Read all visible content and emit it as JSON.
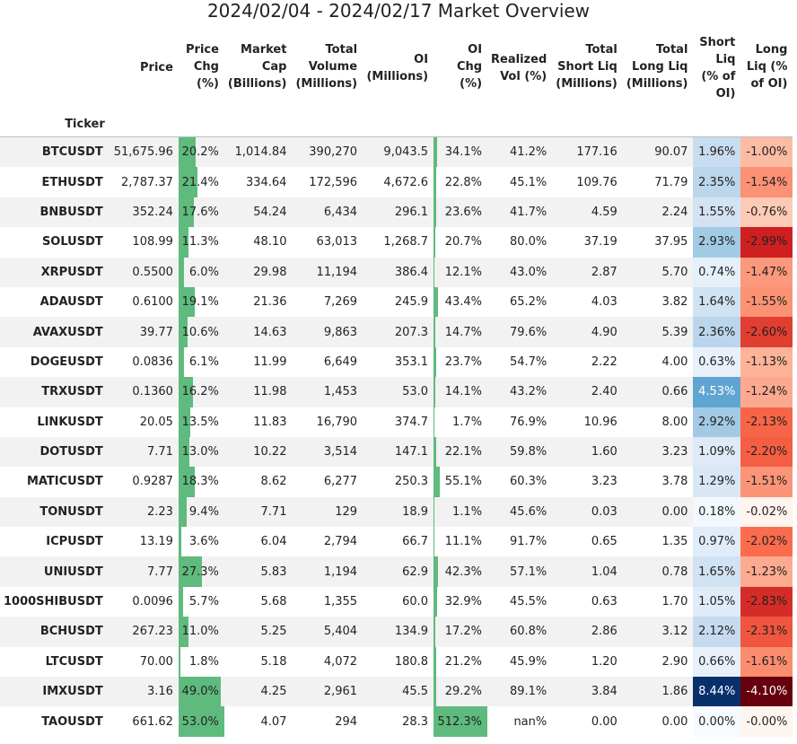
{
  "title": "2024/02/04 - 2024/02/17 Market Overview",
  "headers": {
    "index": "Ticker",
    "columns": [
      [
        "Price"
      ],
      [
        "Price",
        "Chg",
        "(%)"
      ],
      [
        "Market",
        "Cap",
        "(Billions)"
      ],
      [
        "Total",
        "Volume",
        "(Millions)"
      ],
      [
        "OI",
        "(Millions)"
      ],
      [
        "OI",
        "Chg",
        "(%)"
      ],
      [
        "Realized",
        "Vol (%)"
      ],
      [
        "Total",
        "Short Liq",
        "(Millions)"
      ],
      [
        "Total",
        "Long Liq",
        "(Millions)"
      ],
      [
        "Short",
        "Liq",
        "(% of",
        "OI)"
      ],
      [
        "Long",
        "Liq (%",
        "of OI)"
      ]
    ]
  },
  "colors": {
    "bar": "#5fba7d",
    "stripe": "#f2f2f2"
  },
  "chart_data": {
    "type": "table",
    "title": "2024/02/04 - 2024/02/17 Market Overview",
    "rows": [
      {
        "ticker": "BTCUSDT",
        "price": "51,675.96",
        "price_chg": "20.2%",
        "price_chg_v": 20.2,
        "mcap": "1,014.84",
        "volume": "390,270",
        "oi": "9,043.5",
        "oi_chg": "34.1%",
        "oi_chg_v": 34.1,
        "rvol": "41.2%",
        "short_liq": "177.16",
        "long_liq": "90.07",
        "short_pct": "1.96%",
        "short_v": 1.96,
        "long_pct": "-1.00%",
        "long_v": -1.0
      },
      {
        "ticker": "ETHUSDT",
        "price": "2,787.37",
        "price_chg": "21.4%",
        "price_chg_v": 21.4,
        "mcap": "334.64",
        "volume": "172,596",
        "oi": "4,672.6",
        "oi_chg": "22.8%",
        "oi_chg_v": 22.8,
        "rvol": "45.1%",
        "short_liq": "109.76",
        "long_liq": "71.79",
        "short_pct": "2.35%",
        "short_v": 2.35,
        "long_pct": "-1.54%",
        "long_v": -1.54
      },
      {
        "ticker": "BNBUSDT",
        "price": "352.24",
        "price_chg": "17.6%",
        "price_chg_v": 17.6,
        "mcap": "54.24",
        "volume": "6,434",
        "oi": "296.1",
        "oi_chg": "23.6%",
        "oi_chg_v": 23.6,
        "rvol": "41.7%",
        "short_liq": "4.59",
        "long_liq": "2.24",
        "short_pct": "1.55%",
        "short_v": 1.55,
        "long_pct": "-0.76%",
        "long_v": -0.76
      },
      {
        "ticker": "SOLUSDT",
        "price": "108.99",
        "price_chg": "11.3%",
        "price_chg_v": 11.3,
        "mcap": "48.10",
        "volume": "63,013",
        "oi": "1,268.7",
        "oi_chg": "20.7%",
        "oi_chg_v": 20.7,
        "rvol": "80.0%",
        "short_liq": "37.19",
        "long_liq": "37.95",
        "short_pct": "2.93%",
        "short_v": 2.93,
        "long_pct": "-2.99%",
        "long_v": -2.99
      },
      {
        "ticker": "XRPUSDT",
        "price": "0.5500",
        "price_chg": "6.0%",
        "price_chg_v": 6.0,
        "mcap": "29.98",
        "volume": "11,194",
        "oi": "386.4",
        "oi_chg": "12.1%",
        "oi_chg_v": 12.1,
        "rvol": "43.0%",
        "short_liq": "2.87",
        "long_liq": "5.70",
        "short_pct": "0.74%",
        "short_v": 0.74,
        "long_pct": "-1.47%",
        "long_v": -1.47
      },
      {
        "ticker": "ADAUSDT",
        "price": "0.6100",
        "price_chg": "19.1%",
        "price_chg_v": 19.1,
        "mcap": "21.36",
        "volume": "7,269",
        "oi": "245.9",
        "oi_chg": "43.4%",
        "oi_chg_v": 43.4,
        "rvol": "65.2%",
        "short_liq": "4.03",
        "long_liq": "3.82",
        "short_pct": "1.64%",
        "short_v": 1.64,
        "long_pct": "-1.55%",
        "long_v": -1.55
      },
      {
        "ticker": "AVAXUSDT",
        "price": "39.77",
        "price_chg": "10.6%",
        "price_chg_v": 10.6,
        "mcap": "14.63",
        "volume": "9,863",
        "oi": "207.3",
        "oi_chg": "14.7%",
        "oi_chg_v": 14.7,
        "rvol": "79.6%",
        "short_liq": "4.90",
        "long_liq": "5.39",
        "short_pct": "2.36%",
        "short_v": 2.36,
        "long_pct": "-2.60%",
        "long_v": -2.6
      },
      {
        "ticker": "DOGEUSDT",
        "price": "0.0836",
        "price_chg": "6.1%",
        "price_chg_v": 6.1,
        "mcap": "11.99",
        "volume": "6,649",
        "oi": "353.1",
        "oi_chg": "23.7%",
        "oi_chg_v": 23.7,
        "rvol": "54.7%",
        "short_liq": "2.22",
        "long_liq": "4.00",
        "short_pct": "0.63%",
        "short_v": 0.63,
        "long_pct": "-1.13%",
        "long_v": -1.13
      },
      {
        "ticker": "TRXUSDT",
        "price": "0.1360",
        "price_chg": "16.2%",
        "price_chg_v": 16.2,
        "mcap": "11.98",
        "volume": "1,453",
        "oi": "53.0",
        "oi_chg": "14.1%",
        "oi_chg_v": 14.1,
        "rvol": "43.2%",
        "short_liq": "2.40",
        "long_liq": "0.66",
        "short_pct": "4.53%",
        "short_v": 4.53,
        "long_pct": "-1.24%",
        "long_v": -1.24
      },
      {
        "ticker": "LINKUSDT",
        "price": "20.05",
        "price_chg": "13.5%",
        "price_chg_v": 13.5,
        "mcap": "11.83",
        "volume": "16,790",
        "oi": "374.7",
        "oi_chg": "1.7%",
        "oi_chg_v": 1.7,
        "rvol": "76.9%",
        "short_liq": "10.96",
        "long_liq": "8.00",
        "short_pct": "2.92%",
        "short_v": 2.92,
        "long_pct": "-2.13%",
        "long_v": -2.13
      },
      {
        "ticker": "DOTUSDT",
        "price": "7.71",
        "price_chg": "13.0%",
        "price_chg_v": 13.0,
        "mcap": "10.22",
        "volume": "3,514",
        "oi": "147.1",
        "oi_chg": "22.1%",
        "oi_chg_v": 22.1,
        "rvol": "59.8%",
        "short_liq": "1.60",
        "long_liq": "3.23",
        "short_pct": "1.09%",
        "short_v": 1.09,
        "long_pct": "-2.20%",
        "long_v": -2.2
      },
      {
        "ticker": "MATICUSDT",
        "price": "0.9287",
        "price_chg": "18.3%",
        "price_chg_v": 18.3,
        "mcap": "8.62",
        "volume": "6,277",
        "oi": "250.3",
        "oi_chg": "55.1%",
        "oi_chg_v": 55.1,
        "rvol": "60.3%",
        "short_liq": "3.23",
        "long_liq": "3.78",
        "short_pct": "1.29%",
        "short_v": 1.29,
        "long_pct": "-1.51%",
        "long_v": -1.51
      },
      {
        "ticker": "TONUSDT",
        "price": "2.23",
        "price_chg": "9.4%",
        "price_chg_v": 9.4,
        "mcap": "7.71",
        "volume": "129",
        "oi": "18.9",
        "oi_chg": "1.1%",
        "oi_chg_v": 1.1,
        "rvol": "45.6%",
        "short_liq": "0.03",
        "long_liq": "0.00",
        "short_pct": "0.18%",
        "short_v": 0.18,
        "long_pct": "-0.02%",
        "long_v": -0.02
      },
      {
        "ticker": "ICPUSDT",
        "price": "13.19",
        "price_chg": "3.6%",
        "price_chg_v": 3.6,
        "mcap": "6.04",
        "volume": "2,794",
        "oi": "66.7",
        "oi_chg": "11.1%",
        "oi_chg_v": 11.1,
        "rvol": "91.7%",
        "short_liq": "0.65",
        "long_liq": "1.35",
        "short_pct": "0.97%",
        "short_v": 0.97,
        "long_pct": "-2.02%",
        "long_v": -2.02
      },
      {
        "ticker": "UNIUSDT",
        "price": "7.77",
        "price_chg": "27.3%",
        "price_chg_v": 27.3,
        "mcap": "5.83",
        "volume": "1,194",
        "oi": "62.9",
        "oi_chg": "42.3%",
        "oi_chg_v": 42.3,
        "rvol": "57.1%",
        "short_liq": "1.04",
        "long_liq": "0.78",
        "short_pct": "1.65%",
        "short_v": 1.65,
        "long_pct": "-1.23%",
        "long_v": -1.23
      },
      {
        "ticker": "1000SHIBUSDT",
        "price": "0.0096",
        "price_chg": "5.7%",
        "price_chg_v": 5.7,
        "mcap": "5.68",
        "volume": "1,355",
        "oi": "60.0",
        "oi_chg": "32.9%",
        "oi_chg_v": 32.9,
        "rvol": "45.5%",
        "short_liq": "0.63",
        "long_liq": "1.70",
        "short_pct": "1.05%",
        "short_v": 1.05,
        "long_pct": "-2.83%",
        "long_v": -2.83
      },
      {
        "ticker": "BCHUSDT",
        "price": "267.23",
        "price_chg": "11.0%",
        "price_chg_v": 11.0,
        "mcap": "5.25",
        "volume": "5,404",
        "oi": "134.9",
        "oi_chg": "17.2%",
        "oi_chg_v": 17.2,
        "rvol": "60.8%",
        "short_liq": "2.86",
        "long_liq": "3.12",
        "short_pct": "2.12%",
        "short_v": 2.12,
        "long_pct": "-2.31%",
        "long_v": -2.31
      },
      {
        "ticker": "LTCUSDT",
        "price": "70.00",
        "price_chg": "1.8%",
        "price_chg_v": 1.8,
        "mcap": "5.18",
        "volume": "4,072",
        "oi": "180.8",
        "oi_chg": "21.2%",
        "oi_chg_v": 21.2,
        "rvol": "45.9%",
        "short_liq": "1.20",
        "long_liq": "2.90",
        "short_pct": "0.66%",
        "short_v": 0.66,
        "long_pct": "-1.61%",
        "long_v": -1.61
      },
      {
        "ticker": "IMXUSDT",
        "price": "3.16",
        "price_chg": "49.0%",
        "price_chg_v": 49.0,
        "mcap": "4.25",
        "volume": "2,961",
        "oi": "45.5",
        "oi_chg": "29.2%",
        "oi_chg_v": 29.2,
        "rvol": "89.1%",
        "short_liq": "3.84",
        "long_liq": "1.86",
        "short_pct": "8.44%",
        "short_v": 8.44,
        "long_pct": "-4.10%",
        "long_v": -4.1
      },
      {
        "ticker": "TAOUSDT",
        "price": "661.62",
        "price_chg": "53.0%",
        "price_chg_v": 53.0,
        "mcap": "4.07",
        "volume": "294",
        "oi": "28.3",
        "oi_chg": "512.3%",
        "oi_chg_v": 512.3,
        "rvol": "nan%",
        "short_liq": "0.00",
        "long_liq": "0.00",
        "short_pct": "0.00%",
        "short_v": 0.0,
        "long_pct": "-0.00%",
        "long_v": -0.0
      }
    ]
  }
}
